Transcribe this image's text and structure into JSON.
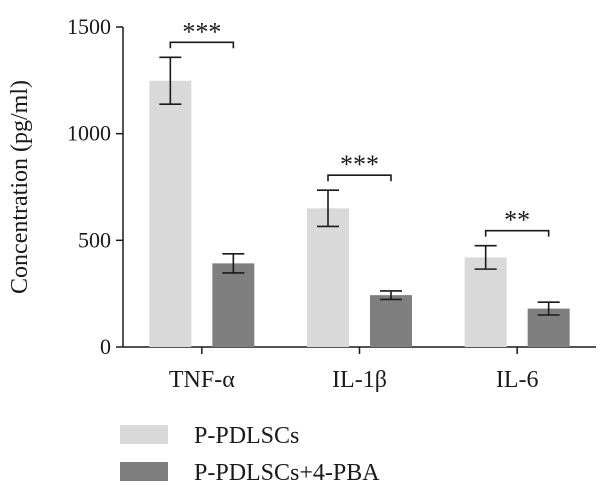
{
  "chart_data": {
    "type": "bar",
    "ylabel": "Concentration (pg/ml)",
    "ylim": [
      0,
      1500
    ],
    "yticks": [
      0,
      500,
      1000,
      1500
    ],
    "yticks_labels": [
      "0",
      "500",
      "1000",
      "1500"
    ],
    "categories": [
      "TNF-α",
      "IL-1β",
      "IL-6"
    ],
    "series": [
      {
        "name": "P-PDLSCs",
        "color": "#d9d9d9",
        "values": [
          1248,
          650,
          420
        ],
        "errors": [
          110,
          85,
          55
        ]
      },
      {
        "name": "P-PDLSCs+4-PBA",
        "color": "#7f7f7f",
        "values": [
          392,
          243,
          180
        ],
        "errors": [
          45,
          20,
          30
        ]
      }
    ],
    "significance": [
      "***",
      "***",
      "**"
    ],
    "legend_position": "bottom-left"
  }
}
